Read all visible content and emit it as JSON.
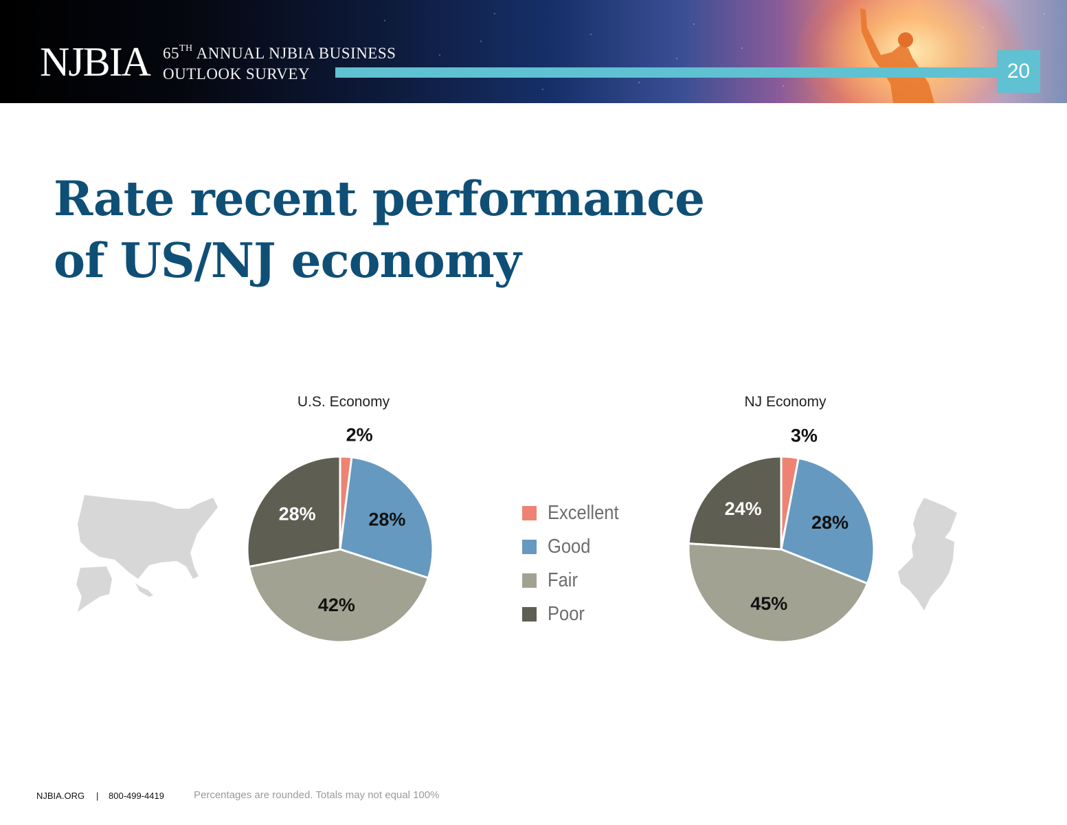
{
  "header": {
    "logo_text": "NJBIA",
    "survey_line1_pre": "65",
    "survey_line1_sup": "TH",
    "survey_line1_post": " ANNUAL NJBIA BUSINESS",
    "survey_line2": "OUTLOOK SURVEY",
    "page_number": "20"
  },
  "title_line1": "Rate recent performance",
  "title_line2": "of US/NJ economy",
  "legend": [
    {
      "label": "Excellent",
      "color": "#ee8373"
    },
    {
      "label": "Good",
      "color": "#6699bf"
    },
    {
      "label": "Fair",
      "color": "#a2a292"
    },
    {
      "label": "Poor",
      "color": "#5e5e52"
    }
  ],
  "chart_data": [
    {
      "type": "pie",
      "title": "U.S. Economy",
      "categories": [
        "Excellent",
        "Good",
        "Fair",
        "Poor"
      ],
      "values": [
        2,
        28,
        42,
        28
      ],
      "labels": [
        "2%",
        "28%",
        "42%",
        "28%"
      ]
    },
    {
      "type": "pie",
      "title": "NJ Economy",
      "categories": [
        "Excellent",
        "Good",
        "Fair",
        "Poor"
      ],
      "values": [
        3,
        28,
        45,
        24
      ],
      "labels": [
        "3%",
        "28%",
        "45%",
        "24%"
      ]
    }
  ],
  "footer": {
    "site": "NJBIA.ORG",
    "separator": "|",
    "phone": "800-499-4419",
    "note": "Percentages are rounded. Totals may not equal 100%"
  }
}
